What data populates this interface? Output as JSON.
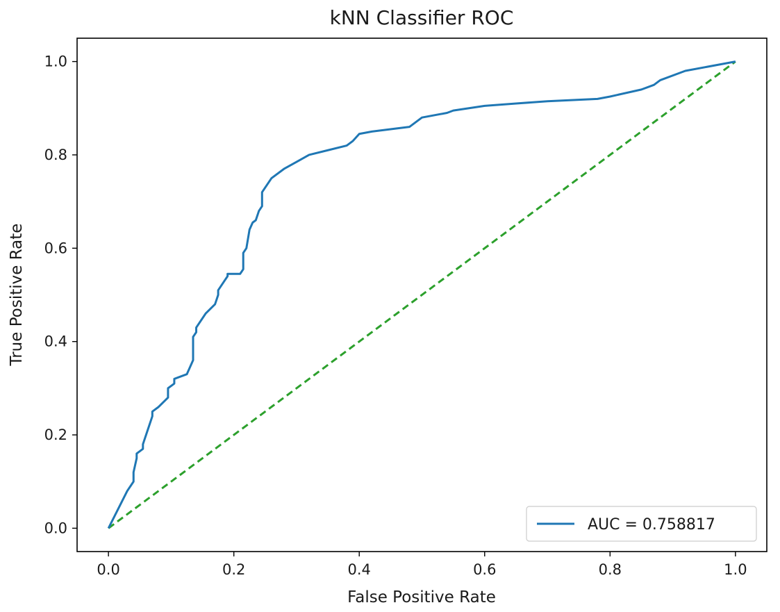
{
  "chart_data": {
    "type": "line",
    "title": "kNN Classifier ROC",
    "xlabel": "False Positive Rate",
    "ylabel": "True Positive Rate",
    "xlim": [
      -0.05,
      1.05
    ],
    "ylim": [
      -0.05,
      1.05
    ],
    "xticks": [
      0.0,
      0.2,
      0.4,
      0.6,
      0.8,
      1.0
    ],
    "yticks": [
      0.0,
      0.2,
      0.4,
      0.6,
      0.8,
      1.0
    ],
    "xtick_labels": [
      "0.0",
      "0.2",
      "0.4",
      "0.6",
      "0.8",
      "1.0"
    ],
    "ytick_labels": [
      "0.0",
      "0.2",
      "0.4",
      "0.6",
      "0.8",
      "1.0"
    ],
    "grid": false,
    "legend_position": "bottom-right",
    "series": [
      {
        "name": "AUC = 0.758817",
        "color": "#1f77b4",
        "style": "solid",
        "in_legend": true,
        "x": [
          0.0,
          0.03,
          0.04,
          0.04,
          0.045,
          0.045,
          0.055,
          0.055,
          0.065,
          0.07,
          0.07,
          0.08,
          0.095,
          0.095,
          0.105,
          0.105,
          0.125,
          0.135,
          0.135,
          0.14,
          0.14,
          0.155,
          0.17,
          0.175,
          0.175,
          0.18,
          0.185,
          0.19,
          0.19,
          0.21,
          0.215,
          0.215,
          0.22,
          0.225,
          0.23,
          0.235,
          0.24,
          0.245,
          0.245,
          0.26,
          0.28,
          0.3,
          0.32,
          0.35,
          0.38,
          0.39,
          0.4,
          0.42,
          0.45,
          0.48,
          0.49,
          0.5,
          0.54,
          0.55,
          0.6,
          0.65,
          0.7,
          0.78,
          0.8,
          0.85,
          0.87,
          0.88,
          0.92,
          1.0
        ],
        "y": [
          0.0,
          0.08,
          0.1,
          0.12,
          0.15,
          0.16,
          0.17,
          0.18,
          0.22,
          0.24,
          0.25,
          0.26,
          0.28,
          0.3,
          0.31,
          0.32,
          0.33,
          0.36,
          0.41,
          0.42,
          0.43,
          0.46,
          0.48,
          0.5,
          0.51,
          0.52,
          0.53,
          0.54,
          0.545,
          0.545,
          0.555,
          0.59,
          0.6,
          0.64,
          0.655,
          0.66,
          0.68,
          0.69,
          0.72,
          0.75,
          0.77,
          0.785,
          0.8,
          0.81,
          0.82,
          0.83,
          0.845,
          0.85,
          0.855,
          0.86,
          0.87,
          0.88,
          0.89,
          0.895,
          0.905,
          0.91,
          0.915,
          0.92,
          0.925,
          0.94,
          0.95,
          0.96,
          0.98,
          1.0
        ]
      },
      {
        "name": "",
        "color": "#2ca02c",
        "style": "dashed",
        "in_legend": false,
        "x": [
          0.0,
          1.0
        ],
        "y": [
          0.0,
          1.0
        ]
      }
    ]
  }
}
